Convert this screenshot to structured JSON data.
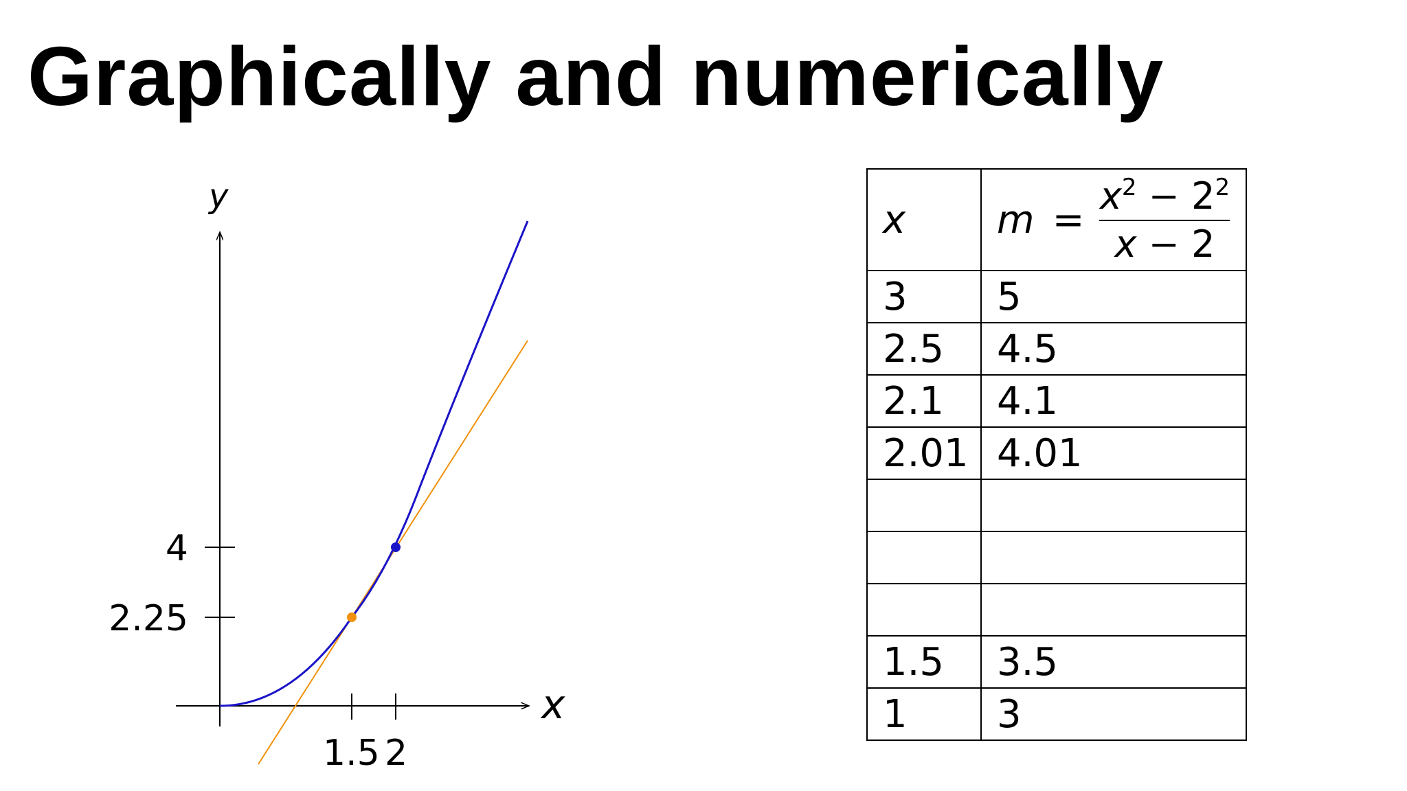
{
  "title": "Graphically and numerically",
  "graph": {
    "x_axis_label": "x",
    "y_axis_label": "y",
    "x_ticks": [
      "1.5",
      "2"
    ],
    "y_ticks": [
      "4",
      "2.25"
    ],
    "curve_color": "#1a14c8",
    "secant_color": "#f0920d",
    "curve": "y = x^2",
    "point_a": {
      "x": 1.5,
      "y": 2.25
    },
    "point_b": {
      "x": 2,
      "y": 4
    }
  },
  "table": {
    "header": {
      "x": "x",
      "m_label": "m",
      "equals": "=",
      "numerator_x": "x",
      "numerator_exp": "2",
      "numerator_minus": "−",
      "numerator_base": "2",
      "numerator_base_exp": "2",
      "denominator_x": "x",
      "denominator_rest": "− 2"
    },
    "rows": [
      {
        "x": "3",
        "m": "5"
      },
      {
        "x": "2.5",
        "m": "4.5"
      },
      {
        "x": "2.1",
        "m": "4.1"
      },
      {
        "x": "2.01",
        "m": "4.01"
      },
      {
        "x": "",
        "m": ""
      },
      {
        "x": "",
        "m": ""
      },
      {
        "x": "",
        "m": ""
      },
      {
        "x": "1.5",
        "m": "3.5"
      },
      {
        "x": "1",
        "m": "3"
      }
    ]
  }
}
